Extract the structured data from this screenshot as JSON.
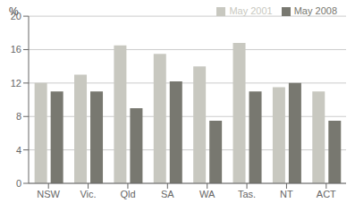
{
  "chart_data": {
    "type": "bar",
    "ylabel": "%",
    "categories": [
      "NSW",
      "Vic.",
      "Qld",
      "SA",
      "WA",
      "Tas.",
      "NT",
      "ACT"
    ],
    "series": [
      {
        "name": "May 2001",
        "color": "#c8c8c0",
        "values": [
          12.0,
          13.0,
          16.5,
          15.5,
          14.0,
          16.8,
          11.5,
          11.0
        ]
      },
      {
        "name": "May 2008",
        "color": "#787870",
        "values": [
          11.0,
          11.0,
          9.0,
          12.2,
          7.5,
          11.0,
          12.0,
          7.5
        ]
      }
    ],
    "ylim": [
      0,
      20
    ],
    "yticks": [
      0,
      4,
      8,
      12,
      16,
      20
    ],
    "grid": true,
    "legend": "upper right"
  }
}
